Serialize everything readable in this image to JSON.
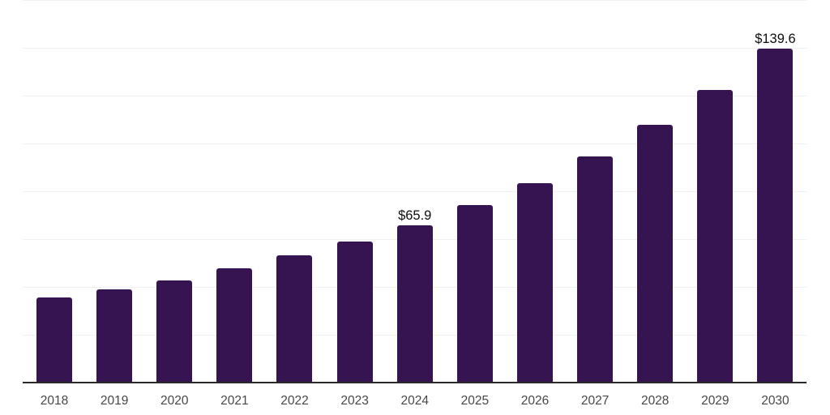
{
  "chart_data": {
    "type": "bar",
    "title": "",
    "xlabel": "",
    "ylabel": "",
    "categories": [
      "2018",
      "2019",
      "2020",
      "2021",
      "2022",
      "2023",
      "2024",
      "2025",
      "2026",
      "2027",
      "2028",
      "2029",
      "2030"
    ],
    "values": [
      35.6,
      39.0,
      42.7,
      47.8,
      53.2,
      59.0,
      65.9,
      74.3,
      83.4,
      94.6,
      107.8,
      122.3,
      139.6
    ],
    "data_labels": [
      "",
      "",
      "",
      "",
      "",
      "",
      "$65.9",
      "",
      "",
      "",
      "",
      "",
      "$139.6"
    ],
    "ylim": [
      0,
      160
    ],
    "gridline_step": 20,
    "grid": true,
    "legend": false,
    "colors": {
      "bar": "#361452",
      "axis_line": "#2b2b2b",
      "gridline": "#f1f1f3",
      "tick_label": "#474747",
      "data_label": "#0d0d0d",
      "background": "#ffffff"
    }
  }
}
